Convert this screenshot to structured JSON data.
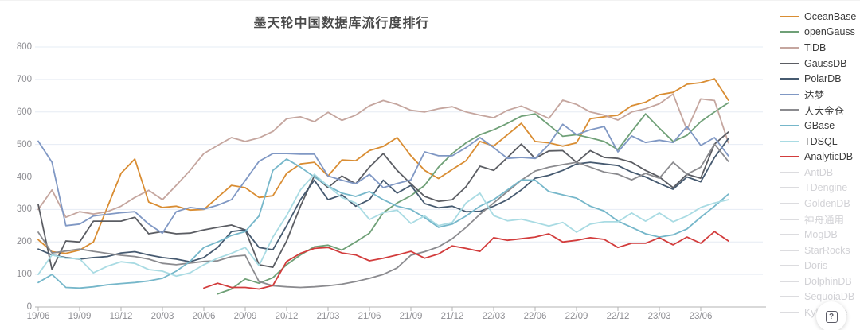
{
  "title": "墨天轮中国数据库流行度排行",
  "help_button": {
    "icon": "?"
  },
  "colors": {
    "background": "#ffffff",
    "gridline": "#e6ecf4",
    "axis_line": "#b3b3b3",
    "axis_label": "#8e8e93",
    "title_text": "#4a4a4a",
    "legend_text": "#3a3a3a",
    "legend_disabled": "#d2d2d6"
  },
  "legend": {
    "disabled_items": [
      "AntDB",
      "TDengine",
      "GoldenDB",
      "神舟通用",
      "MogDB",
      "StarRocks",
      "Doris",
      "DolphinDB",
      "SequoiaDB",
      "Kyligence"
    ]
  },
  "chart_data": {
    "type": "line",
    "title": "墨天轮中国数据库流行度排行",
    "xlabel": "",
    "ylabel": "",
    "ylim": [
      0,
      800
    ],
    "y_ticks": [
      0,
      100,
      200,
      300,
      400,
      500,
      600,
      700,
      800
    ],
    "grid": true,
    "legend_position": "right",
    "x_tick_labels": [
      "19/06",
      "19/09",
      "19/12",
      "20/03",
      "20/06",
      "20/09",
      "20/12",
      "21/03",
      "21/06",
      "21/09",
      "21/12",
      "22/03",
      "22/06",
      "22/09",
      "22/12",
      "23/03",
      "23/06"
    ],
    "x_note": "monthly points from 2019/06 to 2023/08; ticks every 3 months",
    "series": [
      {
        "name": "OceanBase",
        "color": "#d98d33",
        "values": [
          207,
          170,
          165,
          175,
          200,
          306,
          411,
          455,
          323,
          306,
          310,
          298,
          300,
          337,
          374,
          367,
          337,
          342,
          411,
          440,
          445,
          403,
          452,
          450,
          481,
          494,
          521,
          465,
          420,
          395,
          423,
          450,
          509,
          495,
          530,
          565,
          509,
          505,
          495,
          505,
          579,
          585,
          590,
          619,
          630,
          653,
          660,
          685,
          690,
          702,
          636
        ]
      },
      {
        "name": "openGauss",
        "color": "#6fa077",
        "values": [
          null,
          null,
          null,
          null,
          null,
          null,
          null,
          null,
          null,
          null,
          null,
          null,
          null,
          40,
          55,
          86,
          73,
          90,
          130,
          160,
          185,
          190,
          175,
          200,
          227,
          290,
          320,
          342,
          374,
          430,
          472,
          505,
          530,
          545,
          565,
          587,
          594,
          560,
          525,
          530,
          520,
          509,
          484,
          540,
          594,
          550,
          509,
          528,
          570,
          600,
          628
        ]
      },
      {
        "name": "TiDB",
        "color": "#c5a69f",
        "values": [
          300,
          360,
          276,
          293,
          286,
          293,
          310,
          337,
          359,
          330,
          374,
          420,
          472,
          497,
          521,
          509,
          520,
          540,
          579,
          585,
          570,
          599,
          574,
          590,
          619,
          635,
          623,
          605,
          600,
          610,
          616,
          600,
          590,
          582,
          605,
          618,
          600,
          580,
          636,
          623,
          600,
          590,
          575,
          600,
          610,
          625,
          655,
          545,
          640,
          635,
          505
        ]
      },
      {
        "name": "GaussDB",
        "color": "#5b5d63",
        "values": [
          315,
          115,
          203,
          200,
          264,
          264,
          264,
          276,
          225,
          232,
          225,
          227,
          237,
          245,
          252,
          237,
          130,
          122,
          203,
          310,
          403,
          367,
          403,
          379,
          430,
          472,
          420,
          379,
          340,
          325,
          330,
          370,
          433,
          420,
          460,
          501,
          457,
          480,
          481,
          445,
          481,
          460,
          457,
          445,
          420,
          400,
          367,
          408,
          396,
          501,
          538
        ]
      },
      {
        "name": "PolarDB",
        "color": "#465a70",
        "values": [
          178,
          160,
          152,
          147,
          152,
          155,
          166,
          170,
          160,
          152,
          147,
          139,
          152,
          183,
          232,
          237,
          183,
          176,
          250,
          330,
          390,
          330,
          345,
          310,
          330,
          390,
          350,
          374,
          318,
          305,
          310,
          293,
          294,
          310,
          330,
          360,
          396,
          405,
          420,
          440,
          445,
          440,
          435,
          415,
          400,
          380,
          362,
          400,
          385,
          460,
          518
        ]
      },
      {
        "name": "达梦",
        "color": "#8098c4",
        "values": [
          510,
          445,
          250,
          255,
          280,
          285,
          290,
          293,
          255,
          227,
          293,
          306,
          301,
          313,
          330,
          389,
          448,
          472,
          472,
          470,
          470,
          403,
          390,
          379,
          408,
          367,
          380,
          391,
          477,
          465,
          465,
          490,
          521,
          490,
          457,
          460,
          457,
          500,
          562,
          530,
          545,
          555,
          477,
          526,
          506,
          513,
          506,
          555,
          497,
          521,
          465
        ]
      },
      {
        "name": "人大金仓",
        "color": "#8b8b8f",
        "values": [
          230,
          166,
          172,
          178,
          171,
          165,
          159,
          155,
          147,
          134,
          130,
          135,
          140,
          142,
          155,
          159,
          78,
          65,
          62,
          60,
          62,
          65,
          70,
          78,
          88,
          100,
          120,
          159,
          170,
          185,
          210,
          245,
          285,
          320,
          355,
          390,
          418,
          430,
          438,
          445,
          430,
          415,
          408,
          391,
          411,
          396,
          445,
          408,
          430,
          501,
          448
        ]
      },
      {
        "name": "GBase",
        "color": "#76b7ca",
        "values": [
          75,
          100,
          60,
          58,
          62,
          68,
          72,
          75,
          80,
          88,
          110,
          140,
          183,
          200,
          220,
          232,
          280,
          420,
          455,
          430,
          400,
          372,
          350,
          340,
          355,
          330,
          310,
          300,
          275,
          245,
          255,
          280,
          310,
          330,
          360,
          391,
          390,
          355,
          345,
          335,
          310,
          295,
          264,
          245,
          225,
          215,
          222,
          240,
          276,
          310,
          347
        ]
      },
      {
        "name": "TDSQL",
        "color": "#a9dbe3",
        "values": [
          100,
          160,
          150,
          148,
          105,
          125,
          139,
          134,
          115,
          110,
          95,
          105,
          130,
          150,
          165,
          183,
          127,
          215,
          281,
          360,
          408,
          372,
          337,
          320,
          269,
          290,
          298,
          257,
          280,
          250,
          260,
          320,
          350,
          281,
          265,
          270,
          260,
          249,
          260,
          230,
          255,
          262,
          262,
          289,
          264,
          289,
          262,
          280,
          306,
          320,
          330
        ]
      },
      {
        "name": "AnalyticDB",
        "color": "#d23c3c",
        "values": [
          null,
          null,
          null,
          null,
          null,
          null,
          null,
          null,
          null,
          null,
          null,
          null,
          58,
          73,
          60,
          60,
          55,
          66,
          140,
          165,
          180,
          183,
          166,
          160,
          142,
          150,
          160,
          171,
          150,
          163,
          188,
          180,
          171,
          213,
          205,
          210,
          215,
          225,
          200,
          205,
          213,
          208,
          183,
          196,
          196,
          213,
          191,
          215,
          196,
          232,
          203
        ]
      }
    ]
  }
}
